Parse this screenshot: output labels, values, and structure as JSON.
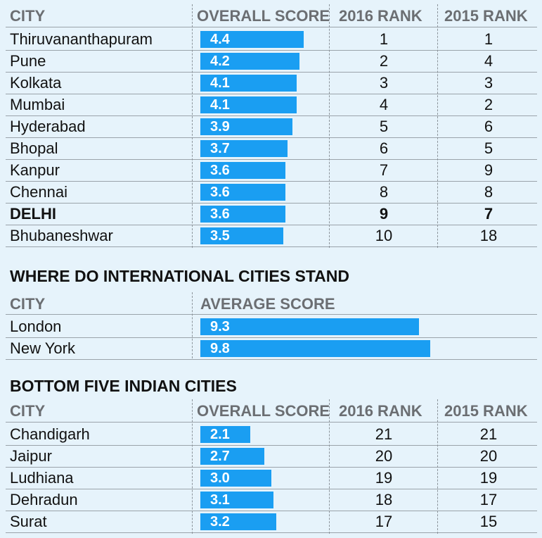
{
  "top_table": {
    "headers": {
      "city": "CITY",
      "score": "OVERALL SCORE",
      "rank2016": "2016 RANK",
      "rank2015": "2015 RANK"
    },
    "rows": [
      {
        "city": "Thiruvananthapuram",
        "score": "4.4",
        "rank2016": "1",
        "rank2015": "1",
        "bold": false
      },
      {
        "city": "Pune",
        "score": "4.2",
        "rank2016": "2",
        "rank2015": "4",
        "bold": false
      },
      {
        "city": "Kolkata",
        "score": "4.1",
        "rank2016": "3",
        "rank2015": "3",
        "bold": false
      },
      {
        "city": "Mumbai",
        "score": "4.1",
        "rank2016": "4",
        "rank2015": "2",
        "bold": false
      },
      {
        "city": "Hyderabad",
        "score": "3.9",
        "rank2016": "5",
        "rank2015": "6",
        "bold": false
      },
      {
        "city": "Bhopal",
        "score": "3.7",
        "rank2016": "6",
        "rank2015": "5",
        "bold": false
      },
      {
        "city": "Kanpur",
        "score": "3.6",
        "rank2016": "7",
        "rank2015": "9",
        "bold": false
      },
      {
        "city": "Chennai",
        "score": "3.6",
        "rank2016": "8",
        "rank2015": "8",
        "bold": false
      },
      {
        "city": "DELHI",
        "score": "3.6",
        "rank2016": "9",
        "rank2015": "7",
        "bold": true
      },
      {
        "city": "Bhubaneshwar",
        "score": "3.5",
        "rank2016": "10",
        "rank2015": "18",
        "bold": false
      }
    ]
  },
  "international": {
    "title": "WHERE DO INTERNATIONAL CITIES STAND",
    "headers": {
      "city": "CITY",
      "score": "AVERAGE SCORE"
    },
    "rows": [
      {
        "city": "London",
        "score": "9.3"
      },
      {
        "city": "New York",
        "score": "9.8"
      }
    ]
  },
  "bottom_table": {
    "title": "BOTTOM FIVE INDIAN CITIES",
    "headers": {
      "city": "CITY",
      "score": "OVERALL SCORE",
      "rank2016": "2016 RANK",
      "rank2015": "2015 RANK"
    },
    "rows": [
      {
        "city": "Chandigarh",
        "score": "2.1",
        "rank2016": "21",
        "rank2015": "21"
      },
      {
        "city": "Jaipur",
        "score": "2.7",
        "rank2016": "20",
        "rank2015": "20"
      },
      {
        "city": "Ludhiana",
        "score": "3.0",
        "rank2016": "19",
        "rank2015": "19"
      },
      {
        "city": "Dehradun",
        "score": "3.1",
        "rank2016": "18",
        "rank2015": "17"
      },
      {
        "city": "Surat",
        "score": "3.2",
        "rank2016": "17",
        "rank2015": "15"
      }
    ]
  },
  "chart_data": [
    {
      "type": "bar",
      "categories": [
        "Thiruvananthapuram",
        "Pune",
        "Kolkata",
        "Mumbai",
        "Hyderabad",
        "Bhopal",
        "Kanpur",
        "Chennai",
        "DELHI",
        "Bhubaneshwar"
      ],
      "values": [
        4.4,
        4.2,
        4.1,
        4.1,
        3.9,
        3.7,
        3.6,
        3.6,
        3.6,
        3.5
      ]
    },
    {
      "type": "bar",
      "categories": [
        "London",
        "New York"
      ],
      "values": [
        9.3,
        9.8
      ]
    },
    {
      "type": "bar",
      "categories": [
        "Chandigarh",
        "Jaipur",
        "Ludhiana",
        "Dehradun",
        "Surat"
      ],
      "values": [
        2.1,
        2.7,
        3.0,
        3.1,
        3.2
      ]
    }
  ],
  "colors": {
    "bar": "#1a9ef2",
    "background": "#e6f3fb",
    "header_text": "#6b6e72"
  }
}
